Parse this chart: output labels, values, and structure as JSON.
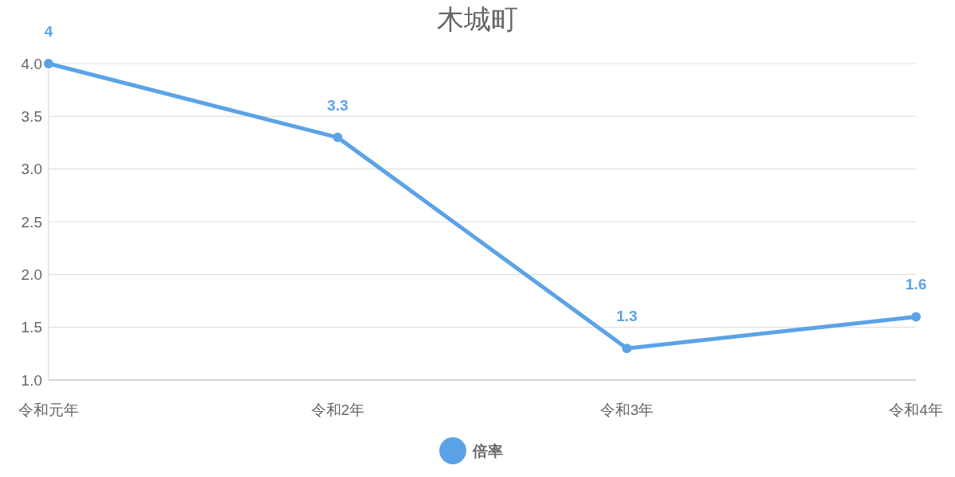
{
  "chart_data": {
    "type": "line",
    "title": "木城町",
    "categories": [
      "令和元年",
      "令和2年",
      "令和3年",
      "令和4年"
    ],
    "series": [
      {
        "name": "倍率",
        "color": "#5ba3e6",
        "values": [
          4,
          3.3,
          1.3,
          1.6
        ]
      }
    ],
    "ylim": [
      1,
      4
    ],
    "yticks": [
      {
        "value": 1,
        "label": "1.0"
      },
      {
        "value": 1.5,
        "label": "1.5"
      },
      {
        "value": 2,
        "label": "2.0"
      },
      {
        "value": 2.5,
        "label": "2.5"
      },
      {
        "value": 3,
        "label": "3.0"
      },
      {
        "value": 3.5,
        "label": "3.5"
      },
      {
        "value": 4,
        "label": "4.0"
      }
    ],
    "grid": "y",
    "legend": "bottom",
    "marker": "circle",
    "line_style": "solid",
    "data_labels": true
  }
}
